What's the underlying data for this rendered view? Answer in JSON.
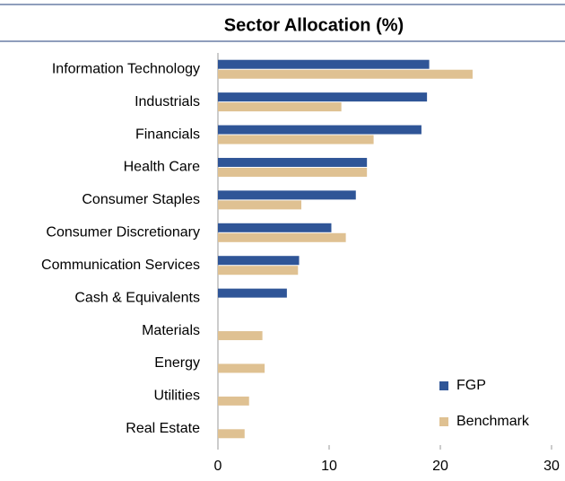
{
  "chart_data": {
    "type": "barh",
    "title": "Sector Allocation (%)",
    "categories": [
      "Information Technology",
      "Industrials",
      "Financials",
      "Health Care",
      "Consumer Staples",
      "Consumer Discretionary",
      "Communication Services",
      "Cash & Equivalents",
      "Materials",
      "Energy",
      "Utilities",
      "Real Estate"
    ],
    "series": [
      {
        "name": "FGP",
        "color": "#2f5597",
        "values": [
          19.0,
          18.8,
          18.3,
          13.4,
          12.4,
          10.2,
          7.3,
          6.2,
          null,
          null,
          null,
          null
        ]
      },
      {
        "name": "Benchmark",
        "color": "#dfc192",
        "values": [
          22.9,
          11.1,
          14.0,
          13.4,
          7.5,
          11.5,
          7.2,
          null,
          4.0,
          4.2,
          2.8,
          2.4
        ]
      }
    ],
    "xlim": [
      0,
      30
    ],
    "xticks": [
      0,
      10,
      20,
      30
    ],
    "grid": false,
    "legend": "lower right"
  }
}
